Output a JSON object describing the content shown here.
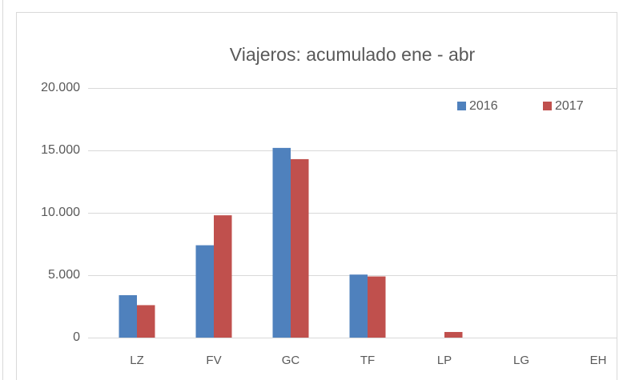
{
  "chart_data": {
    "type": "bar",
    "title": "Viajeros: acumulado ene - abr",
    "categories": [
      "LZ",
      "FV",
      "GC",
      "TF",
      "LP",
      "LG",
      "EH"
    ],
    "series": [
      {
        "name": "2016",
        "color": "#4f81bd",
        "values": [
          3400,
          7400,
          15200,
          5050,
          0,
          0,
          0
        ]
      },
      {
        "name": "2017",
        "color": "#c0504d",
        "values": [
          2600,
          9800,
          14300,
          4900,
          450,
          0,
          0
        ]
      }
    ],
    "ylim": [
      0,
      20000
    ],
    "yticks": [
      0,
      {
        "value": 5000,
        "label": "5.000"
      },
      {
        "value": 10000,
        "label": "10.000"
      },
      {
        "value": 15000,
        "label": "15.000"
      },
      {
        "value": 20000,
        "label": "20.000"
      }
    ],
    "grid": true,
    "legend": "top-right"
  }
}
